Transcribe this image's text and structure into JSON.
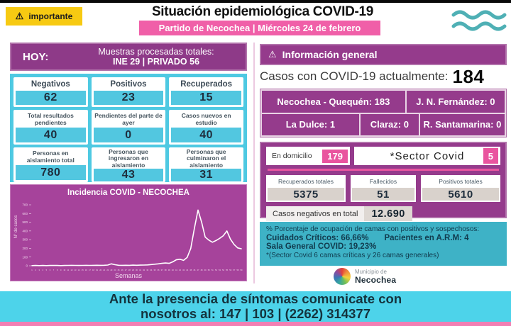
{
  "header": {
    "important_badge": "importante",
    "warning_icon": "⚠",
    "title": "Situación epidemiológica COVID-19",
    "subtitle": "Partido de Necochea | Miércoles 24 de febrero"
  },
  "left": {
    "hoy_label": "HOY:",
    "muestras_line1": "Muestras procesadas totales:",
    "muestras_line2": "INE 29 | PRIVADO 56",
    "stats": [
      {
        "label": "Negativos",
        "value": "62"
      },
      {
        "label": "Positivos",
        "value": "23"
      },
      {
        "label": "Recuperados",
        "value": "15"
      },
      {
        "label": "Total resultados pendientes",
        "value": "40"
      },
      {
        "label": "Pendientes del parte de ayer",
        "value": "0"
      },
      {
        "label": "Casos nuevos en estudio",
        "value": "40"
      },
      {
        "label": "Personas en aislamiento total",
        "value": "780"
      },
      {
        "label": "Personas que ingresaron en aislamiento",
        "value": "43"
      },
      {
        "label": "Personas que culminaron el aislamiento",
        "value": "31"
      }
    ]
  },
  "chart_data": {
    "type": "line",
    "title": "Incidencia COVID - NECOCHEA",
    "xlabel": "Semanas",
    "ylabel": "N° de casos",
    "ylim": [
      0,
      700
    ],
    "yticks": [
      0,
      100,
      200,
      300,
      400,
      500,
      600,
      700
    ],
    "grid": false,
    "legend": "none",
    "line_color": "#ffffff",
    "background": "#a6439b",
    "x": [
      1,
      2,
      3,
      4,
      5,
      6,
      7,
      8,
      9,
      10,
      11,
      12,
      13,
      14,
      15,
      16,
      17,
      18,
      19,
      20,
      21,
      22,
      23,
      24,
      25,
      26,
      27,
      28,
      29,
      30,
      31,
      32,
      33,
      34,
      35,
      36,
      37,
      38,
      39,
      40,
      41,
      42,
      43,
      44,
      45,
      46,
      47,
      48,
      49,
      50,
      51,
      52,
      53,
      54,
      55,
      56,
      57,
      58,
      59
    ],
    "values": [
      2,
      3,
      2,
      3,
      2,
      3,
      4,
      3,
      2,
      3,
      4,
      5,
      4,
      3,
      4,
      5,
      4,
      5,
      6,
      5,
      6,
      8,
      22,
      12,
      6,
      5,
      6,
      5,
      7,
      6,
      7,
      8,
      10,
      14,
      18,
      22,
      28,
      32,
      28,
      45,
      68,
      75,
      62,
      95,
      200,
      430,
      640,
      500,
      330,
      295,
      270,
      290,
      315,
      345,
      400,
      305,
      245,
      205,
      195
    ]
  },
  "right": {
    "info_general": "Información general",
    "warning_icon": "⚠",
    "casos_label": "Casos con COVID-19 actualmente:",
    "casos_value": "184",
    "locations": {
      "row1": [
        "Necochea - Quequén: 183",
        "J. N. Fernández: 0"
      ],
      "row2": [
        "La Dulce: 1",
        "Claraz: 0",
        "R. Santamarina: 0"
      ]
    },
    "domicilio": {
      "label": "En domicilio",
      "value": "179"
    },
    "sector": {
      "label": "*Sector Covid",
      "value": "5"
    },
    "totals": [
      {
        "label": "Recuperados totales",
        "value": "5375"
      },
      {
        "label": "Fallecidos",
        "value": "51"
      },
      {
        "label": "Positivos totales",
        "value": "5610"
      }
    ],
    "negativos": {
      "label": "Casos negativos en total",
      "value": "12.690"
    },
    "ocupacion": {
      "line1": "% Porcentaje de ocupación de camas con positivos y sospechosos:",
      "line2a": "Cuidados Críticos: 66,66%",
      "line2b": "Pacientes en A.R.M: 4",
      "line3": "Sala General COVID: 19,23%",
      "line4": "*(Sector Covid 6 camas críticas y 26 camas generales)"
    },
    "logo": {
      "line1": "Municipio de",
      "line2": "Necochea"
    }
  },
  "footer": {
    "line1": "Ante la presencia de síntomas comunicate con",
    "line2": "nosotros al: 147 | 103 | (2262) 314377"
  },
  "colors": {
    "pink": "#f05fa8",
    "purple": "#953b8c",
    "cyan": "#4ec9e2",
    "chart_magenta": "#a6439b",
    "teal_box": "#3eb2c6",
    "yellow": "#f7ca12",
    "footer_cyan": "#4dd3ea",
    "badge_pink": "#e9559f",
    "dark_navy": "#1f2e3d"
  }
}
